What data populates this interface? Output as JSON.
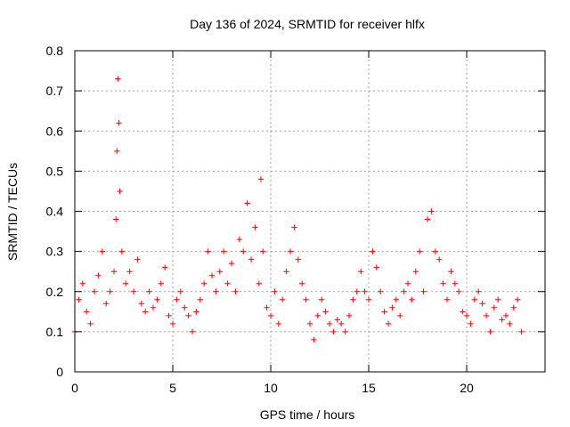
{
  "chart_data": {
    "type": "scatter",
    "title": "Day 136 of 2024, SRMTID for receiver hlfx",
    "xlabel": "GPS time / hours",
    "ylabel": "SRMTID / TECUs",
    "xlim": [
      0,
      24
    ],
    "ylim": [
      0,
      0.8
    ],
    "xticks": [
      0,
      5,
      10,
      15,
      20
    ],
    "yticks": [
      0,
      0.1,
      0.2,
      0.3,
      0.4,
      0.5,
      0.6,
      0.7,
      0.8
    ],
    "xtick_labels": [
      "0",
      "5",
      "10",
      "15",
      "20"
    ],
    "ytick_labels": [
      "0",
      "0.1",
      "0.2",
      "0.3",
      "0.4",
      "0.5",
      "0.6",
      "0.7",
      "0.8"
    ],
    "grid": true,
    "marker": "+",
    "color": "#ff0000",
    "series": [
      {
        "name": "SRMTID",
        "x": [
          0.0,
          0.2,
          0.4,
          0.6,
          0.8,
          1.0,
          1.2,
          1.4,
          1.6,
          1.8,
          2.0,
          2.1,
          2.15,
          2.2,
          2.25,
          2.3,
          2.4,
          2.6,
          2.8,
          3.0,
          3.2,
          3.4,
          3.6,
          3.8,
          4.0,
          4.2,
          4.4,
          4.6,
          4.8,
          5.0,
          5.2,
          5.4,
          5.6,
          5.8,
          6.0,
          6.2,
          6.4,
          6.6,
          6.8,
          7.0,
          7.2,
          7.4,
          7.6,
          7.8,
          8.0,
          8.2,
          8.4,
          8.6,
          8.8,
          9.0,
          9.2,
          9.4,
          9.5,
          9.6,
          9.8,
          10.0,
          10.2,
          10.4,
          10.6,
          10.8,
          11.0,
          11.2,
          11.4,
          11.6,
          11.8,
          12.0,
          12.2,
          12.4,
          12.6,
          12.8,
          13.0,
          13.2,
          13.4,
          13.6,
          13.8,
          14.0,
          14.2,
          14.4,
          14.6,
          14.8,
          15.0,
          15.2,
          15.4,
          15.6,
          15.8,
          16.0,
          16.2,
          16.4,
          16.6,
          16.8,
          17.0,
          17.2,
          17.4,
          17.6,
          17.8,
          18.0,
          18.2,
          18.4,
          18.6,
          18.8,
          19.0,
          19.2,
          19.4,
          19.6,
          19.8,
          20.0,
          20.2,
          20.4,
          20.6,
          20.8,
          21.0,
          21.2,
          21.4,
          21.6,
          21.8,
          22.0,
          22.2,
          22.4,
          22.6,
          22.8
        ],
        "y": [
          0.1,
          0.18,
          0.22,
          0.15,
          0.12,
          0.2,
          0.24,
          0.3,
          0.17,
          0.2,
          0.25,
          0.38,
          0.55,
          0.73,
          0.62,
          0.45,
          0.3,
          0.22,
          0.25,
          0.2,
          0.28,
          0.17,
          0.15,
          0.2,
          0.16,
          0.18,
          0.22,
          0.26,
          0.14,
          0.12,
          0.18,
          0.2,
          0.16,
          0.14,
          0.1,
          0.15,
          0.18,
          0.22,
          0.3,
          0.24,
          0.2,
          0.25,
          0.3,
          0.22,
          0.27,
          0.2,
          0.33,
          0.3,
          0.42,
          0.28,
          0.36,
          0.22,
          0.48,
          0.3,
          0.16,
          0.14,
          0.2,
          0.12,
          0.18,
          0.25,
          0.3,
          0.36,
          0.28,
          0.22,
          0.18,
          0.12,
          0.08,
          0.14,
          0.18,
          0.15,
          0.12,
          0.1,
          0.13,
          0.12,
          0.1,
          0.14,
          0.18,
          0.2,
          0.25,
          0.2,
          0.18,
          0.3,
          0.26,
          0.2,
          0.15,
          0.12,
          0.16,
          0.18,
          0.14,
          0.2,
          0.22,
          0.18,
          0.25,
          0.3,
          0.2,
          0.38,
          0.4,
          0.3,
          0.28,
          0.22,
          0.18,
          0.25,
          0.22,
          0.2,
          0.15,
          0.14,
          0.12,
          0.18,
          0.2,
          0.17,
          0.14,
          0.1,
          0.16,
          0.18,
          0.13,
          0.14,
          0.12,
          0.16,
          0.18,
          0.1
        ]
      }
    ]
  }
}
